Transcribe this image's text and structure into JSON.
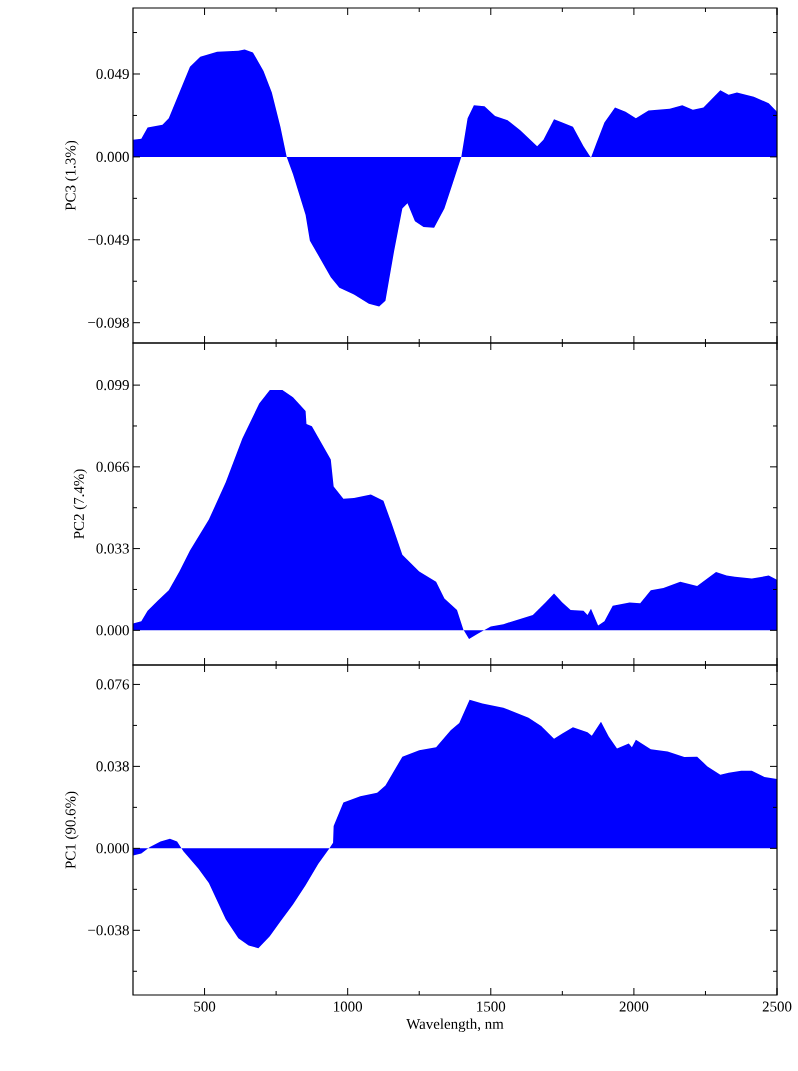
{
  "chart_data": [
    {
      "type": "area",
      "ylabel": "PC3 (1.3%)",
      "color": "#0000ff",
      "tick_labels": "y",
      "xlim": [
        250,
        2500
      ],
      "ylim": [
        -0.11,
        0.088
      ],
      "xticks": [
        500,
        {
          "value": 750,
          "label": null
        },
        1000,
        {
          "value": 1250,
          "label": null
        },
        1500,
        {
          "value": 1750,
          "label": null
        },
        2000,
        {
          "value": 2250,
          "label": null
        },
        2500
      ],
      "yticks": [
        {
          "value": -0.098,
          "label": "−0.098"
        },
        {
          "value": -0.0735,
          "label": null
        },
        {
          "value": -0.049,
          "label": "−0.049"
        },
        {
          "value": -0.0245,
          "label": null
        },
        {
          "value": 0,
          "label": "0.000"
        },
        {
          "value": 0.0245,
          "label": null
        },
        {
          "value": 0.049,
          "label": "0.049"
        },
        {
          "value": 0.0735,
          "label": null
        }
      ],
      "x": [
        250,
        279,
        301,
        353,
        375,
        412,
        449,
        485,
        544,
        618,
        640,
        669,
        706,
        735,
        765,
        787,
        809,
        853,
        868,
        941,
        971,
        1022,
        1074,
        1110,
        1132,
        1162,
        1191,
        1209,
        1235,
        1265,
        1302,
        1338,
        1368,
        1397,
        1419,
        1441,
        1478,
        1515,
        1559,
        1603,
        1662,
        1684,
        1721,
        1750,
        1787,
        1824,
        1850,
        1868,
        1897,
        1934,
        1971,
        2007,
        2051,
        2125,
        2169,
        2206,
        2243,
        2302,
        2331,
        2360,
        2419,
        2471,
        2500
      ],
      "values": [
        0.0102,
        0.0107,
        0.0173,
        0.019,
        0.0229,
        0.0381,
        0.0533,
        0.0592,
        0.0622,
        0.0627,
        0.0635,
        0.0617,
        0.0508,
        0.0381,
        0.0178,
        0,
        -0.0102,
        -0.0343,
        -0.0495,
        -0.0711,
        -0.0774,
        -0.0813,
        -0.0868,
        -0.0884,
        -0.085,
        -0.0559,
        -0.0305,
        -0.0274,
        -0.0381,
        -0.0414,
        -0.0419,
        -0.0305,
        -0.0152,
        0,
        0.0229,
        0.0305,
        0.03,
        0.0241,
        0.0216,
        0.0157,
        0.0063,
        0.0102,
        0.0223,
        0.0203,
        0.0178,
        0.0063,
        -0.0005,
        0.0076,
        0.0203,
        0.0292,
        0.0267,
        0.0229,
        0.0274,
        0.0284,
        0.0305,
        0.0279,
        0.0292,
        0.0394,
        0.0368,
        0.0381,
        0.0355,
        0.0317,
        0.0267
      ]
    },
    {
      "type": "area",
      "ylabel": "PC2 (7.4%)",
      "color": "#0000ff",
      "tick_labels": "y",
      "xlim": [
        250,
        2500
      ],
      "ylim": [
        -0.014,
        0.116
      ],
      "xticks": [
        500,
        {
          "value": 750,
          "label": null
        },
        1000,
        {
          "value": 1250,
          "label": null
        },
        1500,
        {
          "value": 1750,
          "label": null
        },
        2000,
        {
          "value": 2250,
          "label": null
        },
        2500
      ],
      "yticks": [
        {
          "value": 0,
          "label": "0.000"
        },
        {
          "value": 0.0165,
          "label": null
        },
        {
          "value": 0.033,
          "label": "0.033"
        },
        {
          "value": 0.0495,
          "label": null
        },
        {
          "value": 0.066,
          "label": "0.066"
        },
        {
          "value": 0.0825,
          "label": null
        },
        {
          "value": 0.099,
          "label": "0.099"
        }
      ],
      "x": [
        250,
        279,
        301,
        338,
        375,
        412,
        449,
        515,
        574,
        632,
        691,
        728,
        772,
        809,
        853,
        856,
        875,
        941,
        951,
        985,
        1022,
        1081,
        1125,
        1154,
        1191,
        1250,
        1309,
        1338,
        1382,
        1404,
        1424,
        1456,
        1500,
        1544,
        1647,
        1691,
        1721,
        1750,
        1779,
        1824,
        1838,
        1850,
        1875,
        1897,
        1926,
        1985,
        2022,
        2059,
        2103,
        2162,
        2221,
        2287,
        2324,
        2353,
        2412,
        2471,
        2500
      ],
      "values": [
        0.0028,
        0.0037,
        0.0079,
        0.0121,
        0.0162,
        0.0238,
        0.0322,
        0.0447,
        0.0598,
        0.0774,
        0.0916,
        0.097,
        0.097,
        0.0941,
        0.0886,
        0.0833,
        0.0824,
        0.069,
        0.0581,
        0.0531,
        0.0534,
        0.0548,
        0.0523,
        0.043,
        0.0305,
        0.0238,
        0.0196,
        0.0129,
        0.0082,
        0.0003,
        -0.0035,
        -0.0013,
        0.0015,
        0.0025,
        0.0062,
        0.0112,
        0.0149,
        0.0112,
        0.0082,
        0.0079,
        0.0062,
        0.0087,
        0.002,
        0.0037,
        0.0099,
        0.0112,
        0.0109,
        0.0162,
        0.0171,
        0.0196,
        0.0179,
        0.0236,
        0.0221,
        0.0216,
        0.0209,
        0.0221,
        0.0204
      ]
    },
    {
      "type": "area",
      "ylabel": "PC1 (90.6%)",
      "xlabel": "Wavelength, nm",
      "color": "#0000ff",
      "xlim": [
        250,
        2500
      ],
      "ylim": [
        -0.068,
        0.085
      ],
      "xticks": [
        {
          "value": 500,
          "label": "500"
        },
        {
          "value": 750,
          "label": null
        },
        {
          "value": 1000,
          "label": "1000"
        },
        {
          "value": 1250,
          "label": null
        },
        {
          "value": 1500,
          "label": "1500"
        },
        {
          "value": 1750,
          "label": null
        },
        {
          "value": 2000,
          "label": "2000"
        },
        {
          "value": 2250,
          "label": null
        },
        {
          "value": 2500,
          "label": "2500"
        }
      ],
      "yticks": [
        {
          "value": -0.057,
          "label": null
        },
        {
          "value": -0.038,
          "label": "−0.038"
        },
        {
          "value": -0.019,
          "label": null
        },
        {
          "value": 0,
          "label": "0.000"
        },
        {
          "value": 0.019,
          "label": null
        },
        {
          "value": 0.038,
          "label": "0.038"
        },
        {
          "value": 0.057,
          "label": null
        },
        {
          "value": 0.076,
          "label": "0.076"
        }
      ],
      "x": [
        250,
        279,
        309,
        346,
        379,
        404,
        426,
        478,
        515,
        574,
        618,
        654,
        688,
        728,
        765,
        809,
        853,
        897,
        934,
        949,
        951,
        985,
        1044,
        1103,
        1132,
        1191,
        1250,
        1309,
        1360,
        1390,
        1426,
        1471,
        1544,
        1632,
        1676,
        1721,
        1750,
        1787,
        1838,
        1853,
        1885,
        1912,
        1941,
        1982,
        1993,
        2007,
        2059,
        2118,
        2176,
        2221,
        2257,
        2302,
        2331,
        2375,
        2412,
        2456,
        2500
      ],
      "values": [
        -0.0033,
        -0.0024,
        0.0006,
        0.0032,
        0.0045,
        0.0032,
        -0.0014,
        -0.0093,
        -0.0161,
        -0.0329,
        -0.0417,
        -0.0451,
        -0.0463,
        -0.0408,
        -0.0339,
        -0.026,
        -0.0171,
        -0.0073,
        -0.0004,
        0.0026,
        0.0104,
        0.0213,
        0.0242,
        0.0258,
        0.0291,
        0.0425,
        0.0455,
        0.0469,
        0.0547,
        0.0581,
        0.0689,
        0.0671,
        0.0652,
        0.0606,
        0.0567,
        0.0508,
        0.0532,
        0.0561,
        0.0538,
        0.0522,
        0.0587,
        0.0518,
        0.0463,
        0.0486,
        0.0469,
        0.0504,
        0.0459,
        0.0449,
        0.0423,
        0.0425,
        0.038,
        0.0341,
        0.035,
        0.036,
        0.036,
        0.0331,
        0.0321
      ]
    }
  ]
}
